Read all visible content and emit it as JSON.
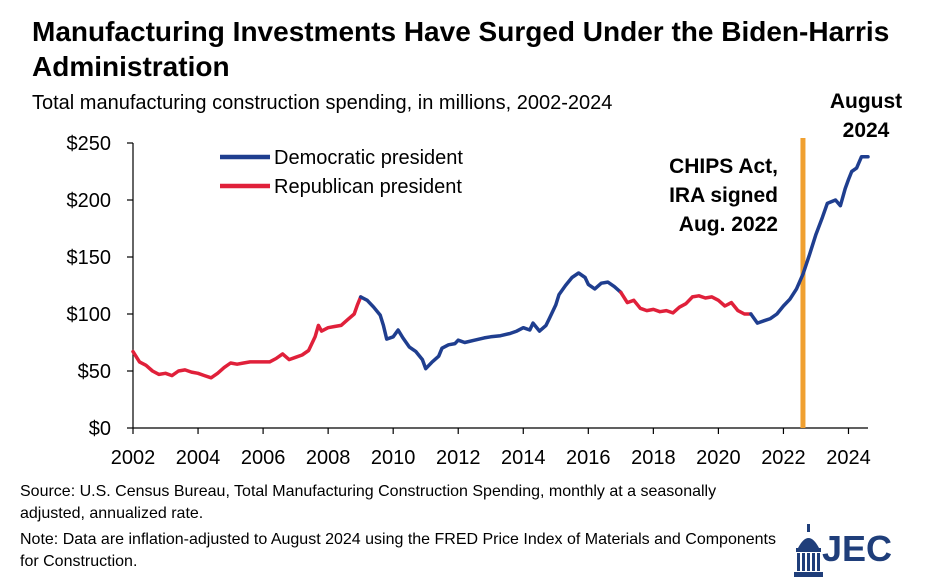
{
  "title": "Manufacturing Investments Have Surged Under the Biden-Harris Administration",
  "subtitle": "Total manufacturing construction spending, in millions, 2002-2024",
  "footer": {
    "source": "Source: U.S. Census Bureau, Total Manufacturing Construction Spending, monthly at a seasonally adjusted, annualized rate.",
    "note": "Note: Data are inflation-adjusted to August 2024 using the FRED Price Index of Materials and Components for Construction."
  },
  "logo": {
    "text": "JEC",
    "icon": "capitol-dome-icon"
  },
  "colors": {
    "democratic": "#1f3e8f",
    "republican": "#e0203a",
    "marker": "#f0a030"
  },
  "chart_data": {
    "type": "line",
    "title": "Manufacturing Investments Have Surged Under the Biden-Harris Administration",
    "subtitle": "Total manufacturing construction spending, in millions, 2002-2024",
    "xlim": [
      2002,
      2024.6
    ],
    "ylim": [
      0,
      250
    ],
    "x_ticks": [
      "2002",
      "2004",
      "2006",
      "2008",
      "2010",
      "2012",
      "2014",
      "2016",
      "2018",
      "2020",
      "2022",
      "2024"
    ],
    "y_ticks": [
      "$0",
      "$50",
      "$100",
      "$150",
      "$200",
      "$250"
    ],
    "grid": false,
    "legend": {
      "placement": "top-left"
    },
    "series": [
      {
        "name": "Republican president",
        "color": "#e0203a",
        "points": [
          [
            2002.0,
            67
          ],
          [
            2002.2,
            58
          ],
          [
            2002.4,
            55
          ],
          [
            2002.6,
            50
          ],
          [
            2002.8,
            47
          ],
          [
            2003.0,
            48
          ],
          [
            2003.2,
            46
          ],
          [
            2003.4,
            50
          ],
          [
            2003.6,
            51
          ],
          [
            2003.8,
            49
          ],
          [
            2004.0,
            48
          ],
          [
            2004.2,
            46
          ],
          [
            2004.4,
            44
          ],
          [
            2004.6,
            48
          ],
          [
            2004.8,
            53
          ],
          [
            2005.0,
            57
          ],
          [
            2005.2,
            56
          ],
          [
            2005.4,
            57
          ],
          [
            2005.6,
            58
          ],
          [
            2005.8,
            58
          ],
          [
            2006.0,
            58
          ],
          [
            2006.2,
            58
          ],
          [
            2006.4,
            61
          ],
          [
            2006.6,
            65
          ],
          [
            2006.8,
            60
          ],
          [
            2007.0,
            62
          ],
          [
            2007.2,
            64
          ],
          [
            2007.4,
            68
          ],
          [
            2007.6,
            80
          ],
          [
            2007.7,
            90
          ],
          [
            2007.8,
            85
          ],
          [
            2008.0,
            88
          ],
          [
            2008.2,
            89
          ],
          [
            2008.4,
            90
          ],
          [
            2008.6,
            95
          ],
          [
            2008.8,
            100
          ],
          [
            2008.9,
            108
          ],
          [
            2009.0,
            115
          ]
        ]
      },
      {
        "name": "Democratic president",
        "color": "#1f3e8f",
        "points": [
          [
            2009.0,
            115
          ],
          [
            2009.2,
            112
          ],
          [
            2009.4,
            106
          ],
          [
            2009.6,
            99
          ],
          [
            2009.7,
            90
          ],
          [
            2009.8,
            78
          ],
          [
            2010.0,
            80
          ],
          [
            2010.15,
            86
          ],
          [
            2010.3,
            79
          ],
          [
            2010.5,
            71
          ],
          [
            2010.7,
            67
          ],
          [
            2010.9,
            60
          ],
          [
            2011.0,
            52
          ],
          [
            2011.2,
            58
          ],
          [
            2011.4,
            63
          ],
          [
            2011.5,
            70
          ],
          [
            2011.7,
            73
          ],
          [
            2011.9,
            74
          ],
          [
            2012.0,
            77
          ],
          [
            2012.2,
            75
          ],
          [
            2012.5,
            77
          ],
          [
            2012.8,
            79
          ],
          [
            2013.0,
            80
          ],
          [
            2013.3,
            81
          ],
          [
            2013.6,
            83
          ],
          [
            2013.8,
            85
          ],
          [
            2014.0,
            88
          ],
          [
            2014.2,
            86
          ],
          [
            2014.3,
            92
          ],
          [
            2014.5,
            85
          ],
          [
            2014.7,
            90
          ],
          [
            2014.8,
            96
          ],
          [
            2015.0,
            108
          ],
          [
            2015.1,
            117
          ],
          [
            2015.3,
            125
          ],
          [
            2015.5,
            132
          ],
          [
            2015.7,
            136
          ],
          [
            2015.9,
            132
          ],
          [
            2016.0,
            126
          ],
          [
            2016.2,
            122
          ],
          [
            2016.4,
            127
          ],
          [
            2016.6,
            128
          ],
          [
            2016.8,
            124
          ],
          [
            2017.0,
            119
          ]
        ]
      },
      {
        "name": "Republican president",
        "color": "#e0203a",
        "points": [
          [
            2017.0,
            119
          ],
          [
            2017.2,
            110
          ],
          [
            2017.4,
            112
          ],
          [
            2017.6,
            105
          ],
          [
            2017.8,
            103
          ],
          [
            2018.0,
            104
          ],
          [
            2018.2,
            102
          ],
          [
            2018.4,
            103
          ],
          [
            2018.6,
            101
          ],
          [
            2018.8,
            106
          ],
          [
            2019.0,
            109
          ],
          [
            2019.2,
            115
          ],
          [
            2019.4,
            116
          ],
          [
            2019.6,
            114
          ],
          [
            2019.8,
            115
          ],
          [
            2020.0,
            112
          ],
          [
            2020.2,
            107
          ],
          [
            2020.4,
            110
          ],
          [
            2020.6,
            103
          ],
          [
            2020.8,
            100
          ],
          [
            2021.0,
            100
          ]
        ]
      },
      {
        "name": "Democratic president",
        "color": "#1f3e8f",
        "points": [
          [
            2021.0,
            100
          ],
          [
            2021.2,
            92
          ],
          [
            2021.4,
            94
          ],
          [
            2021.6,
            96
          ],
          [
            2021.8,
            100
          ],
          [
            2022.0,
            107
          ],
          [
            2022.2,
            113
          ],
          [
            2022.4,
            122
          ],
          [
            2022.6,
            135
          ],
          [
            2022.8,
            152
          ],
          [
            2023.0,
            170
          ],
          [
            2023.2,
            185
          ],
          [
            2023.35,
            197
          ],
          [
            2023.6,
            200
          ],
          [
            2023.75,
            195
          ],
          [
            2023.9,
            210
          ],
          [
            2024.0,
            218
          ],
          [
            2024.1,
            225
          ],
          [
            2024.25,
            228
          ],
          [
            2024.4,
            238
          ],
          [
            2024.6,
            238
          ]
        ]
      }
    ],
    "annotations": [
      {
        "text": [
          "CHIPS Act,",
          "IRA signed",
          "Aug. 2022"
        ],
        "x": 2022.6
      },
      {
        "text": [
          "August",
          "2024"
        ],
        "x": 2024.6
      }
    ],
    "vline": {
      "x": 2022.6,
      "color": "#f0a030"
    }
  }
}
